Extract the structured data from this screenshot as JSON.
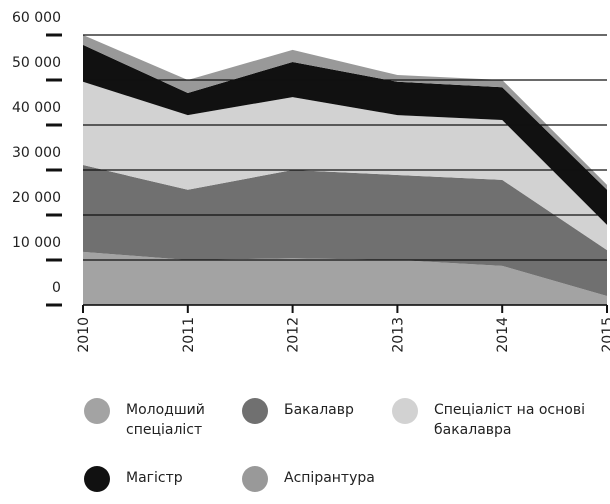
{
  "chart_data": {
    "type": "stacked_area",
    "categories": [
      "2010",
      "2011",
      "2012",
      "2013",
      "2014",
      "2015"
    ],
    "series": [
      {
        "name": "Молодший спеціаліст",
        "color": "#a3a3a3",
        "values": [
          11800,
          10000,
          10400,
          10000,
          8700,
          2000
        ]
      },
      {
        "name": "Бакалавр",
        "color": "#707070",
        "values": [
          19300,
          15600,
          19600,
          18900,
          19100,
          10200
        ]
      },
      {
        "name": "Спеціаліст на основі бакалавра",
        "color": "#d2d2d2",
        "values": [
          18500,
          16600,
          16200,
          13300,
          13300,
          5600
        ]
      },
      {
        "name": "Магістр",
        "color": "#111111",
        "values": [
          8200,
          4900,
          7800,
          7400,
          7300,
          7800
        ]
      },
      {
        "name": "Аспірантура",
        "color": "#999999",
        "values": [
          2200,
          2900,
          2700,
          1500,
          1600,
          1100
        ]
      }
    ],
    "ylim": [
      0,
      60000
    ],
    "yticks": [
      0,
      {
        "value": 10000,
        "label": "10 000"
      },
      {
        "value": 20000,
        "label": "20 000"
      },
      {
        "value": 30000,
        "label": "30 000"
      },
      {
        "value": 40000,
        "label": "40 000"
      },
      {
        "value": 50000,
        "label": "50 000"
      },
      {
        "value": 60000,
        "label": "60 000"
      }
    ],
    "grid": true
  }
}
